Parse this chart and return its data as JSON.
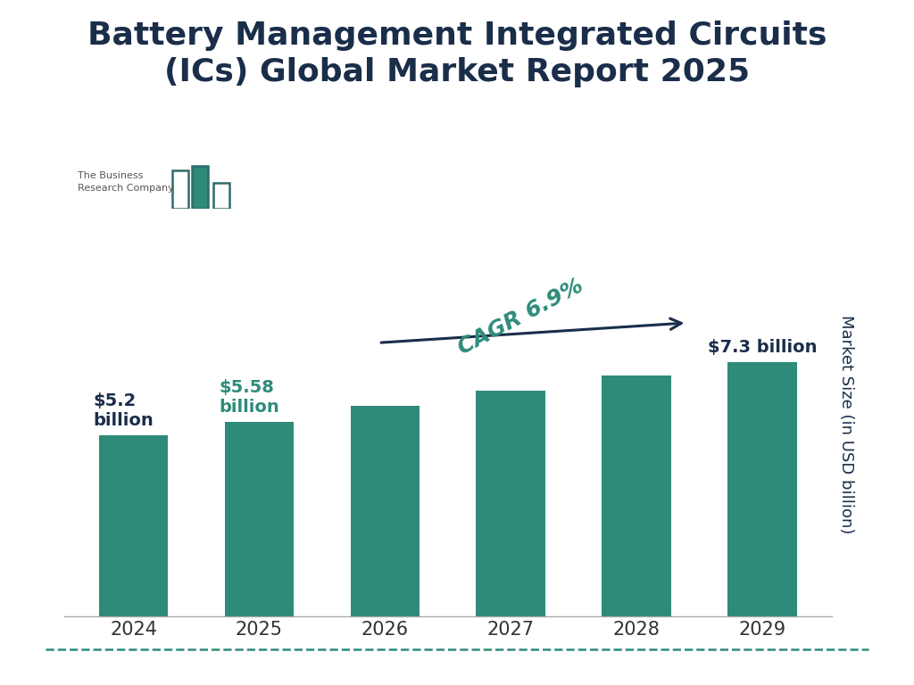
{
  "title": "Battery Management Integrated Circuits\n(ICs) Global Market Report 2025",
  "years": [
    "2024",
    "2025",
    "2026",
    "2027",
    "2028",
    "2029"
  ],
  "values": [
    5.2,
    5.58,
    6.05,
    6.47,
    6.92,
    7.3
  ],
  "bar_color": "#2e8b7a",
  "background_color": "#ffffff",
  "title_color": "#1a2e4a",
  "ylabel": "Market Size (in USD billion)",
  "ylabel_color": "#1a2e4a",
  "cagr_text": "CAGR 6.9%",
  "cagr_color": "#2e8b7a",
  "label_2024": "$5.2\nbillion",
  "label_2025": "$5.58\nbillion",
  "label_2029": "$7.3 billion",
  "label_color_2024": "#1a2e4a",
  "label_color_2025": "#2e8b7a",
  "label_color_2029": "#1a2e4a",
  "ylim": [
    0,
    11.0
  ],
  "border_color": "#2e8b7a",
  "title_fontsize": 26,
  "tick_fontsize": 15,
  "ylabel_fontsize": 13
}
